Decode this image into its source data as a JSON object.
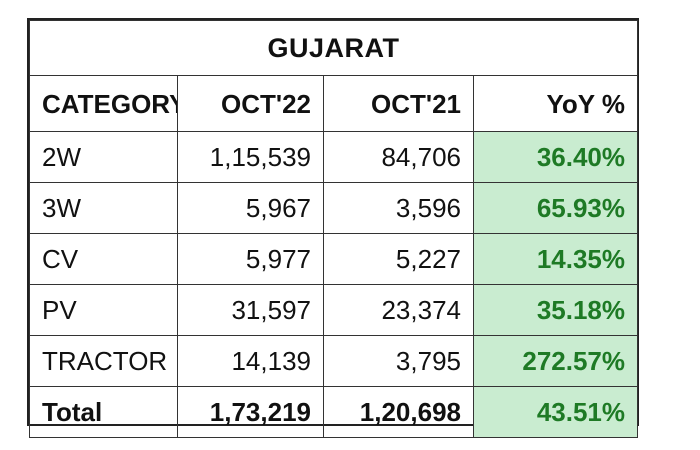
{
  "title": "GUJARAT",
  "headers": {
    "category": "CATEGORY",
    "oct22": "OCT'22",
    "oct21": "OCT'21",
    "yoy": "YoY %"
  },
  "rows": [
    {
      "category": "2W",
      "oct22": "1,15,539",
      "oct21": "84,706",
      "yoy": "36.40%"
    },
    {
      "category": "3W",
      "oct22": "5,967",
      "oct21": "3,596",
      "yoy": "65.93%"
    },
    {
      "category": "CV",
      "oct22": "5,977",
      "oct21": "5,227",
      "yoy": "14.35%"
    },
    {
      "category": "PV",
      "oct22": "31,597",
      "oct21": "23,374",
      "yoy": "35.18%"
    },
    {
      "category": "TRACTOR",
      "oct22": "14,139",
      "oct21": "3,795",
      "yoy": "272.57%"
    }
  ],
  "total": {
    "category": "Total",
    "oct22": "1,73,219",
    "oct21": "1,20,698",
    "yoy": "43.51%"
  },
  "colors": {
    "yoy_background": "#c9ecd0",
    "yoy_text": "#1e7a25",
    "border": "#333333"
  }
}
